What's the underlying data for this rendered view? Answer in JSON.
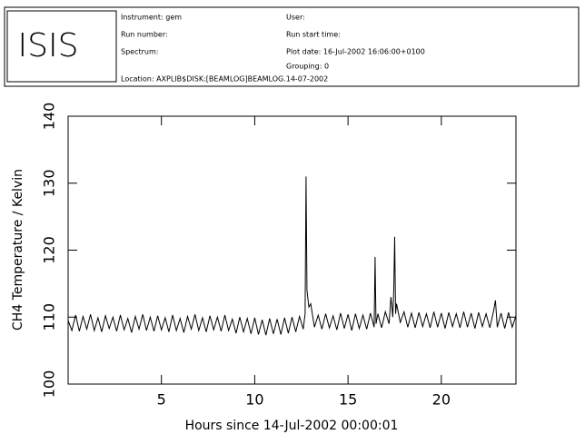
{
  "header": {
    "logo": "ISIS",
    "instrument": "Instrument: gem",
    "run_number": "Run number:",
    "spectrum": "Spectrum:",
    "user": "User:",
    "run_start": "Run start time:",
    "plot_date": "Plot date: 16-Jul-2002 16:06:00+0100",
    "grouping": "Grouping: 0",
    "location": "Location: AXPLIB$DISK:[BEAMLOG]BEAMLOG.14-07-2002"
  },
  "chart_data": {
    "type": "line",
    "xlabel": "Hours since 14-Jul-2002 00:00:01",
    "ylabel": "CH4 Temperature / Kelvin",
    "color": "#000000",
    "xlim": [
      0,
      24
    ],
    "xticks": [
      5,
      10,
      15,
      20
    ],
    "ylim": [
      100,
      140
    ],
    "yticks": [
      100,
      110,
      120,
      130,
      140
    ],
    "x": [
      0,
      0.2,
      0.4,
      0.6,
      0.8,
      1.0,
      1.2,
      1.4,
      1.6,
      1.8,
      2.0,
      2.2,
      2.4,
      2.6,
      2.8,
      3.0,
      3.2,
      3.4,
      3.6,
      3.8,
      4.0,
      4.2,
      4.4,
      4.6,
      4.8,
      5.0,
      5.2,
      5.4,
      5.6,
      5.8,
      6.0,
      6.2,
      6.4,
      6.6,
      6.8,
      7.0,
      7.2,
      7.4,
      7.6,
      7.8,
      8.0,
      8.2,
      8.4,
      8.6,
      8.8,
      9.0,
      9.2,
      9.4,
      9.6,
      9.8,
      10.0,
      10.2,
      10.4,
      10.6,
      10.8,
      11.0,
      11.2,
      11.4,
      11.6,
      11.8,
      12.0,
      12.2,
      12.4,
      12.6,
      12.7,
      12.75,
      12.8,
      12.9,
      13.0,
      13.2,
      13.4,
      13.6,
      13.8,
      14.0,
      14.2,
      14.4,
      14.6,
      14.8,
      15.0,
      15.2,
      15.4,
      15.6,
      15.8,
      16.0,
      16.2,
      16.4,
      16.45,
      16.5,
      16.6,
      16.8,
      17.0,
      17.2,
      17.3,
      17.4,
      17.45,
      17.5,
      17.55,
      17.6,
      17.8,
      18.0,
      18.2,
      18.4,
      18.6,
      18.8,
      19.0,
      19.2,
      19.4,
      19.6,
      19.8,
      20.0,
      20.2,
      20.4,
      20.6,
      20.8,
      21.0,
      21.2,
      21.4,
      21.6,
      21.8,
      22.0,
      22.2,
      22.4,
      22.6,
      22.8,
      22.9,
      23.0,
      23.2,
      23.4,
      23.6,
      23.8,
      24.0
    ],
    "values": [
      109.5,
      108.0,
      110.3,
      107.9,
      110.1,
      108.2,
      110.4,
      108.0,
      109.9,
      107.8,
      110.2,
      108.3,
      110.0,
      107.9,
      110.3,
      108.1,
      109.8,
      107.7,
      110.1,
      108.2,
      110.4,
      108.0,
      110.0,
      107.9,
      110.2,
      108.1,
      109.9,
      107.8,
      110.3,
      108.0,
      109.8,
      107.7,
      110.1,
      108.2,
      110.4,
      108.0,
      109.9,
      107.8,
      110.2,
      108.1,
      110.0,
      107.9,
      110.3,
      108.0,
      109.7,
      107.6,
      110.0,
      107.8,
      109.8,
      107.5,
      109.9,
      107.4,
      109.6,
      107.3,
      109.8,
      107.5,
      109.7,
      107.4,
      109.9,
      107.6,
      110.0,
      107.8,
      110.1,
      108.2,
      110.5,
      131.0,
      114.0,
      111.5,
      112.0,
      108.5,
      110.3,
      108.2,
      110.5,
      108.4,
      110.2,
      108.1,
      110.6,
      108.3,
      110.4,
      108.0,
      110.5,
      108.3,
      110.3,
      108.2,
      110.6,
      108.5,
      119.0,
      109.0,
      110.5,
      108.4,
      110.8,
      109.0,
      113.0,
      110.0,
      114.0,
      122.0,
      110.5,
      112.0,
      109.2,
      110.8,
      108.5,
      110.6,
      108.4,
      110.7,
      108.6,
      110.5,
      108.4,
      110.8,
      108.5,
      110.6,
      108.3,
      110.7,
      108.6,
      110.5,
      108.4,
      110.8,
      108.5,
      110.6,
      108.3,
      110.7,
      108.6,
      110.5,
      108.4,
      110.9,
      112.5,
      108.5,
      110.6,
      108.3,
      110.7,
      108.5,
      110.2
    ]
  }
}
